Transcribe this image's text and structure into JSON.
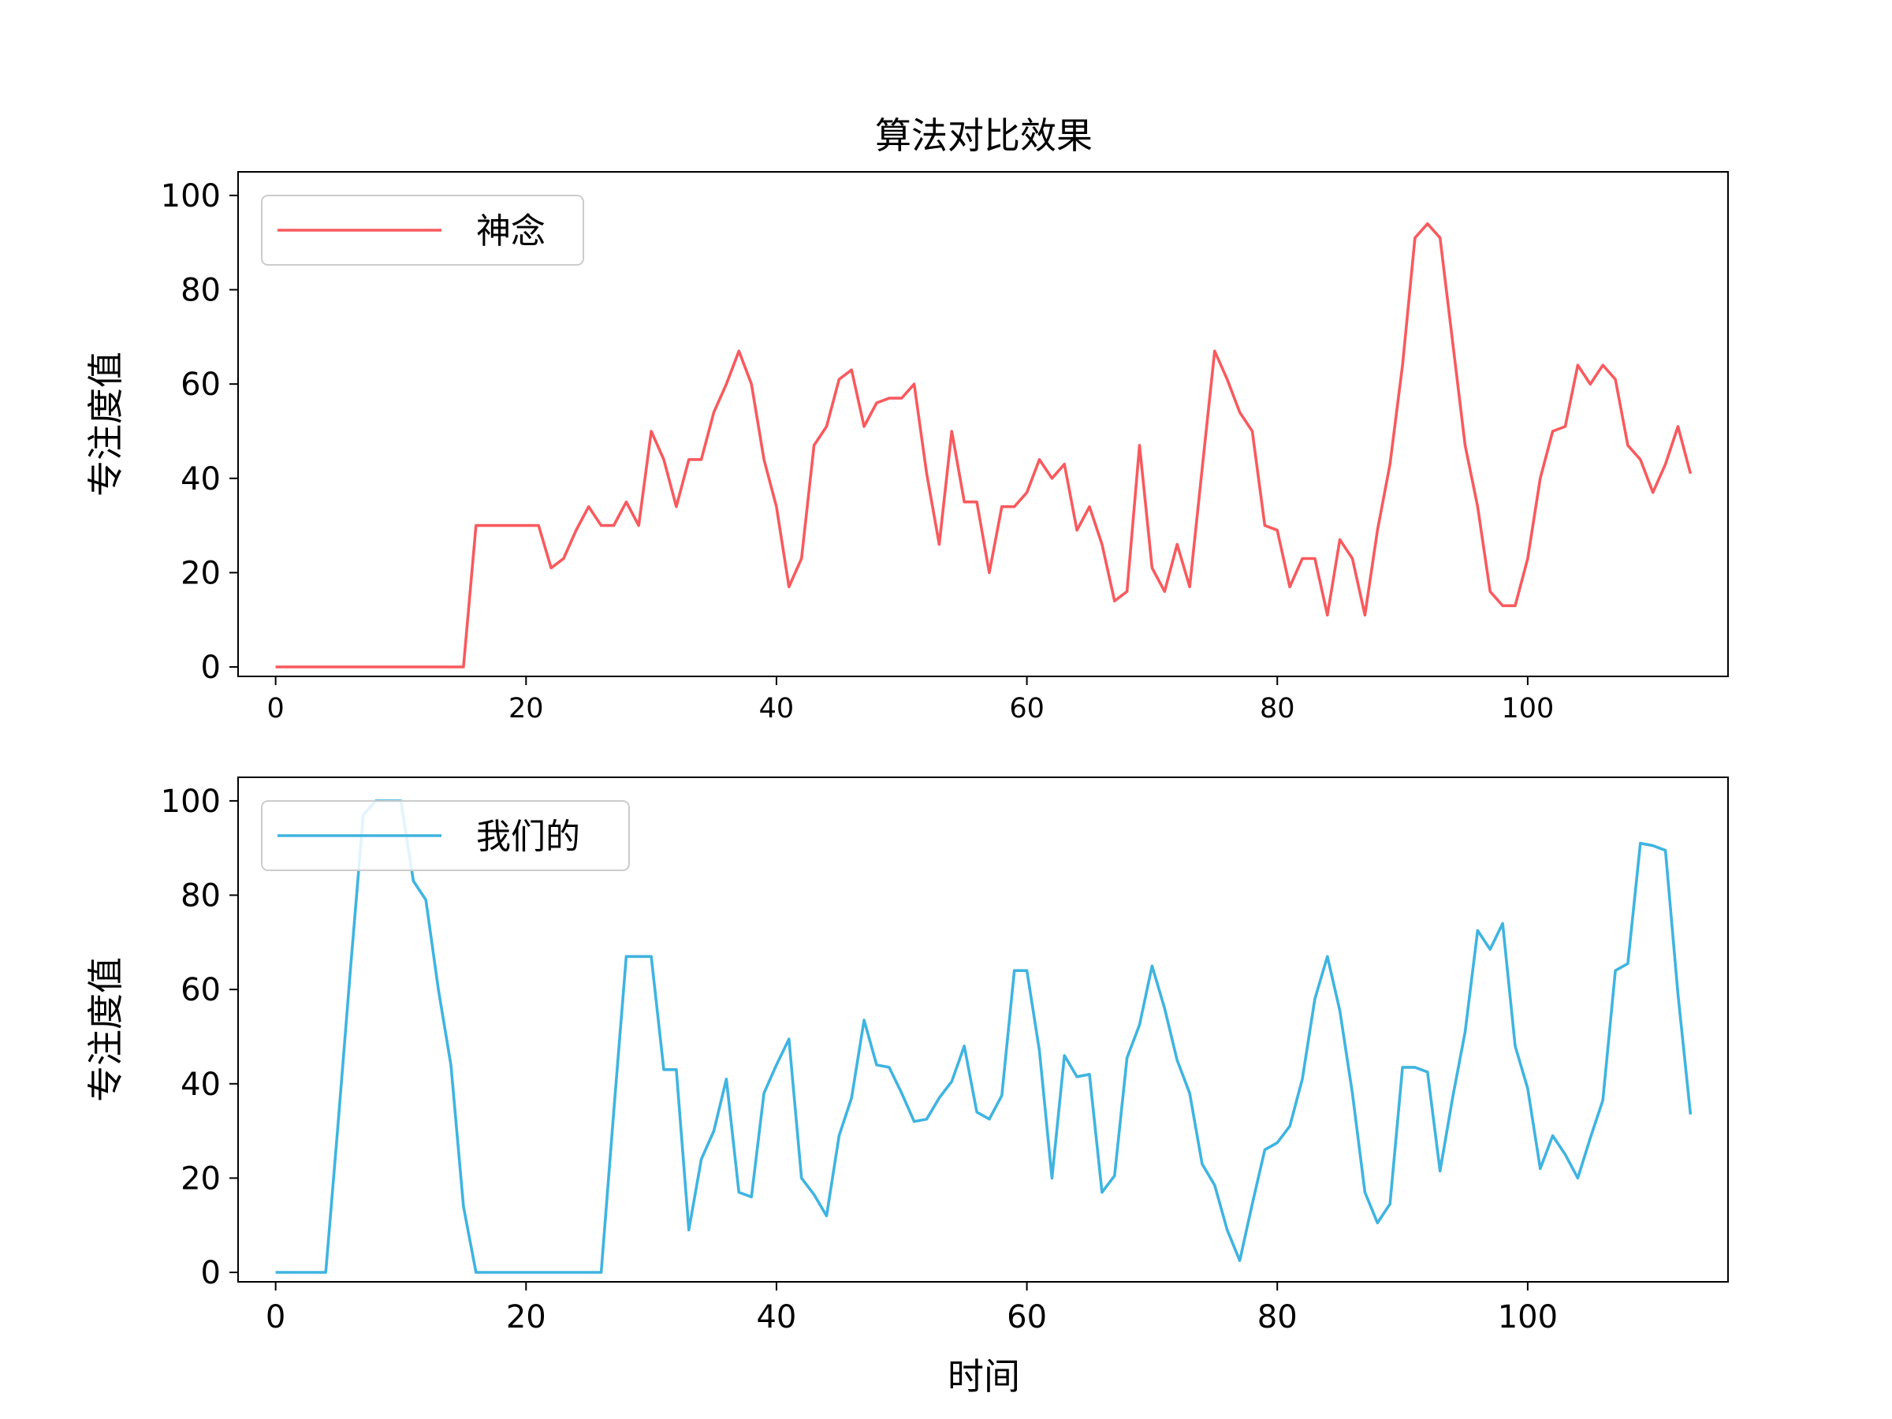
{
  "chart_data": [
    {
      "type": "line",
      "title": "算法对比效果",
      "xlabel": "",
      "ylabel": "专注度值",
      "xlim": [
        -3,
        116
      ],
      "ylim": [
        -2,
        105
      ],
      "xticks": [
        0,
        20,
        40,
        60,
        80,
        100
      ],
      "yticks": [
        0,
        20,
        40,
        60,
        80,
        100
      ],
      "grid": false,
      "legend_position": "top-left",
      "series": [
        {
          "name": "神念",
          "color": "#f85a5e",
          "x": [
            0,
            1,
            2,
            3,
            4,
            5,
            6,
            7,
            8,
            9,
            10,
            11,
            12,
            13,
            14,
            15,
            16,
            17,
            18,
            19,
            20,
            21,
            22,
            23,
            24,
            25,
            26,
            27,
            28,
            29,
            30,
            31,
            32,
            33,
            34,
            35,
            36,
            37,
            38,
            39,
            40,
            41,
            42,
            43,
            44,
            45,
            46,
            47,
            48,
            49,
            50,
            51,
            52,
            53,
            54,
            55,
            56,
            57,
            58,
            59,
            60,
            61,
            62,
            63,
            64,
            65,
            66,
            67,
            68,
            69,
            70,
            71,
            72,
            73,
            74,
            75,
            76,
            77,
            78,
            79,
            80,
            81,
            82,
            83,
            84,
            85,
            86,
            87,
            88,
            89,
            90,
            91,
            92,
            93,
            94,
            95,
            96,
            97,
            98,
            99,
            100,
            101,
            102,
            103,
            104,
            105,
            106,
            107,
            108,
            109,
            110,
            111,
            112,
            113
          ],
          "values": [
            0,
            0,
            0,
            0,
            0,
            0,
            0,
            0,
            0,
            0,
            0,
            0,
            0,
            0,
            0,
            0,
            30,
            30,
            30,
            30,
            30,
            30,
            21,
            23,
            29,
            34,
            30,
            30,
            35,
            30,
            50,
            44,
            34,
            44,
            44,
            54,
            60,
            67,
            60,
            44,
            34,
            17,
            23,
            47,
            51,
            61,
            63,
            51,
            56,
            57,
            57,
            60,
            41,
            26,
            50,
            35,
            35,
            20,
            34,
            34,
            37,
            44,
            40,
            43,
            29,
            34,
            26,
            14,
            16,
            47,
            21,
            16,
            26,
            17,
            42,
            67,
            61,
            54,
            50,
            30,
            29,
            17,
            23,
            23,
            11,
            27,
            23,
            11,
            29,
            43,
            64,
            91,
            94,
            91,
            69,
            47,
            34,
            16,
            13,
            13,
            23,
            40,
            50,
            51,
            64,
            60,
            64,
            61,
            47,
            44,
            37,
            43,
            51,
            41
          ]
        }
      ]
    },
    {
      "type": "line",
      "title": "",
      "xlabel": "时间",
      "ylabel": "专注度值",
      "xlim": [
        -3,
        116
      ],
      "ylim": [
        -2,
        105
      ],
      "xticks": [
        0,
        20,
        40,
        60,
        80,
        100
      ],
      "yticks": [
        0,
        20,
        40,
        60,
        80,
        100
      ],
      "grid": false,
      "legend_position": "top-left",
      "series": [
        {
          "name": "我们的",
          "color": "#3fb4e0",
          "x": [
            0,
            1,
            2,
            3,
            4,
            5,
            6,
            7,
            8,
            9,
            10,
            11,
            12,
            13,
            14,
            15,
            16,
            17,
            18,
            19,
            20,
            21,
            22,
            23,
            24,
            25,
            26,
            27,
            28,
            29,
            30,
            31,
            32,
            33,
            34,
            35,
            36,
            37,
            38,
            39,
            40,
            41,
            42,
            43,
            44,
            45,
            46,
            47,
            48,
            49,
            50,
            51,
            52,
            53,
            54,
            55,
            56,
            57,
            58,
            59,
            60,
            61,
            62,
            63,
            64,
            65,
            66,
            67,
            68,
            69,
            70,
            71,
            72,
            73,
            74,
            75,
            76,
            77,
            78,
            79,
            80,
            81,
            82,
            83,
            84,
            85,
            86,
            87,
            88,
            89,
            90,
            91,
            92,
            93,
            94,
            95,
            96,
            97,
            98,
            99,
            100,
            101,
            102,
            103,
            104,
            105,
            106,
            107,
            108,
            109,
            110,
            111,
            112,
            113
          ],
          "values": [
            0,
            0,
            0,
            0,
            0,
            32,
            65,
            97,
            100,
            100,
            100,
            83,
            79,
            60,
            44,
            14,
            0,
            0,
            0,
            0,
            0,
            0,
            0,
            0,
            0,
            0,
            0,
            34,
            67,
            67,
            67,
            43,
            43,
            9,
            24,
            30,
            41,
            17,
            16,
            38,
            44,
            49.5,
            20,
            16.5,
            12,
            29,
            37,
            53.5,
            44,
            43.5,
            38,
            32,
            32.5,
            37,
            40.5,
            48,
            34,
            32.5,
            37.5,
            64,
            64,
            47,
            20,
            46,
            41.5,
            42,
            17,
            20.5,
            45.5,
            52.5,
            65,
            56,
            45,
            38,
            23,
            18.5,
            9,
            2.5,
            14.5,
            26,
            27.5,
            31,
            41,
            58,
            67,
            55.5,
            38,
            17,
            10.5,
            14.5,
            43.5,
            43.5,
            42.5,
            21.5,
            37,
            51,
            72.5,
            68.5,
            74,
            48,
            39,
            22,
            29,
            25,
            20,
            28.5,
            36.5,
            64,
            65.5,
            91,
            90.5,
            89.5,
            59,
            33.5
          ]
        }
      ]
    }
  ]
}
